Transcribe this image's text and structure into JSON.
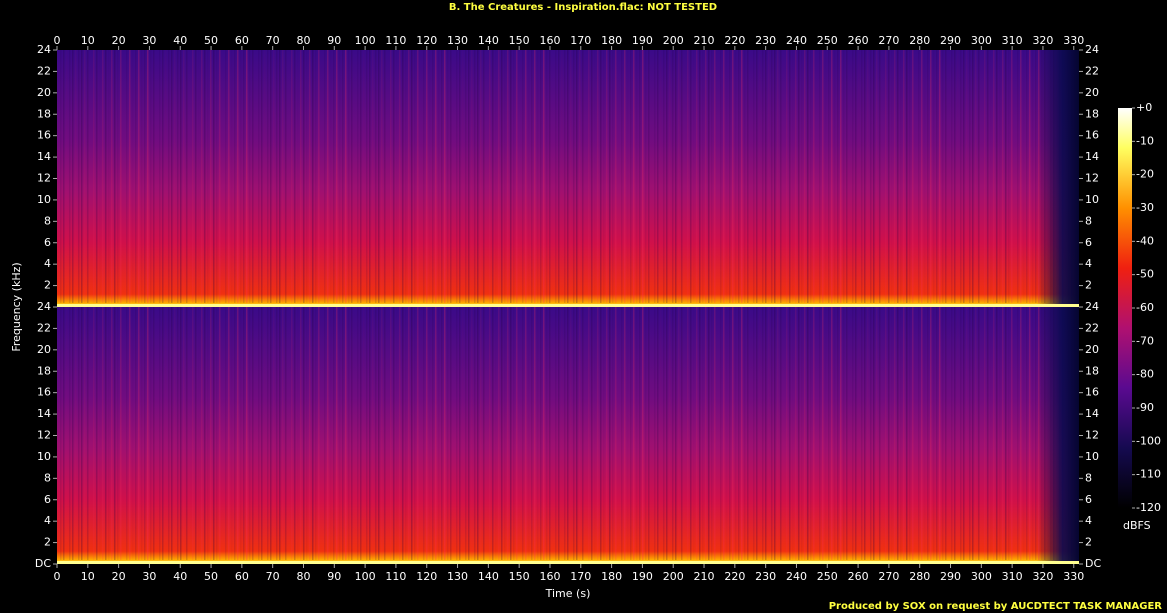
{
  "chart_data": {
    "type": "spectrogram",
    "title": "B. The Creatures - Inspiration.flac: NOT TESTED",
    "footer": "Produced by SOX on request by AUCDTECT TASK MANAGER",
    "xlabel": "Time (s)",
    "ylabel": "Frequency (kHz)",
    "xlim": [
      0,
      331.7
    ],
    "xticks": [
      0,
      10,
      20,
      30,
      40,
      50,
      60,
      70,
      80,
      90,
      100,
      110,
      120,
      130,
      140,
      150,
      160,
      170,
      180,
      190,
      200,
      210,
      220,
      230,
      240,
      250,
      260,
      270,
      280,
      290,
      300,
      310,
      320,
      330
    ],
    "panels": [
      {
        "ylim": [
          0,
          24
        ],
        "yticks": [
          2,
          4,
          6,
          8,
          10,
          12,
          14,
          16,
          18,
          20,
          22,
          24
        ]
      },
      {
        "ylim": [
          0,
          24
        ],
        "yticks": [
          {
            "value": 0,
            "label": "DC"
          },
          2,
          4,
          6,
          8,
          10,
          12,
          14,
          16,
          18,
          20,
          22,
          24
        ]
      }
    ],
    "colorbar": {
      "label": "dBFS",
      "lim": [
        -120,
        0
      ],
      "ticks": [
        {
          "value": 0,
          "label": "+0"
        },
        -10,
        -20,
        -30,
        -40,
        -50,
        -60,
        -70,
        -80,
        -90,
        -100,
        -110,
        -120
      ]
    }
  }
}
